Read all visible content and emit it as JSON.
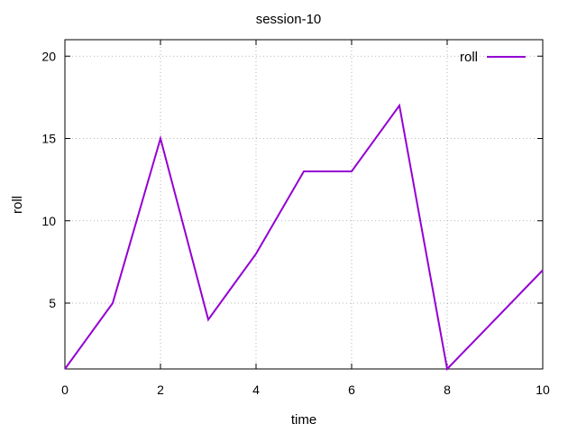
{
  "chart_data": {
    "type": "line",
    "title": "session-10",
    "xlabel": "time",
    "ylabel": "roll",
    "xlim": [
      0,
      10
    ],
    "ylim": [
      1,
      21
    ],
    "xticks": [
      0,
      2,
      4,
      6,
      8,
      10
    ],
    "yticks": [
      5,
      10,
      15,
      20
    ],
    "grid": true,
    "legend_position": "top-right",
    "series": [
      {
        "name": "roll",
        "color": "#9400d3",
        "x": [
          0,
          1,
          2,
          3,
          4,
          5,
          6,
          7,
          8,
          9,
          10
        ],
        "y": [
          1,
          5,
          15,
          4,
          8,
          13,
          13,
          17,
          1,
          4,
          7
        ]
      }
    ]
  }
}
